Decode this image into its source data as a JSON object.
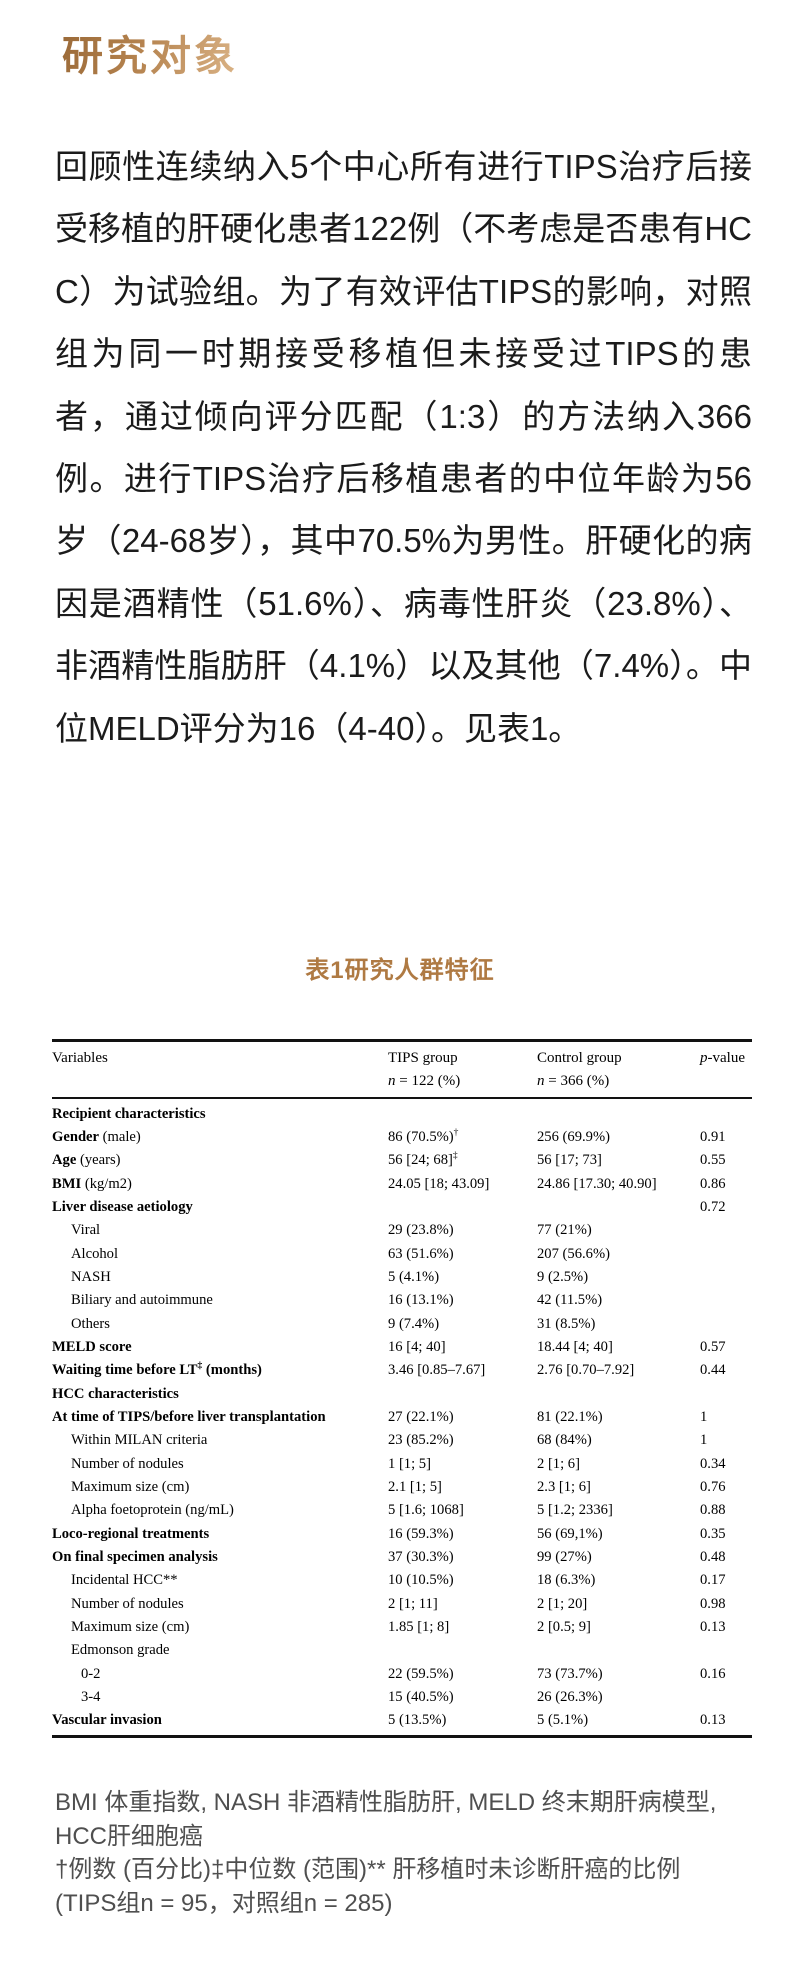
{
  "page": {
    "heading": "研究对象",
    "paragraph": "回顾性连续纳入5个中心所有进行TIPS治疗后接受移植的肝硬化患者122例（不考虑是否患有HCC）为试验组。为了有效评估TIPS的影响，对照组为同一时期接受移植但未接受过TIPS的患者，通过倾向评分匹配（1:3）的方法纳入366例。进行TIPS治疗后移植患者的中位年龄为56岁（24-68岁），其中70.5%为男性。肝硬化的病因是酒精性（51.6%）、病毒性肝炎（23.8%）、非酒精性脂肪肝（4.1%）以及其他（7.4%）。中位MELD评分为16（4-40）。见表1。",
    "table_title": "表1研究人群特征",
    "colors": {
      "heading_gold_dark": "#9a6937",
      "heading_gold_light": "#dbb487",
      "table_title_gold": "#af7a43",
      "body_text": "#1b1b1b",
      "footnote_text": "#4f4f4f"
    }
  },
  "table": {
    "headers": {
      "variables": "Variables",
      "tips_line1": "TIPS group",
      "tips_line2": "n = 122 (%)",
      "control_line1": "Control group",
      "control_line2": "n = 366 (%)",
      "p": "p-value"
    },
    "rows": [
      {
        "label": "Recipient characteristics",
        "bold": true,
        "indent": 0,
        "tips": "",
        "control": "",
        "p": ""
      },
      {
        "label": "Gender",
        "plain": " (male)",
        "bold": true,
        "indent": 0,
        "tips": "86 (70.5%)",
        "tips_sup": "†",
        "control": "256 (69.9%)",
        "p": "0.91"
      },
      {
        "label": "Age",
        "plain": " (years)",
        "bold": true,
        "indent": 0,
        "tips": "56 [24; 68]",
        "tips_sup": "‡",
        "control": "56 [17; 73]",
        "p": "0.55"
      },
      {
        "label": "BMI",
        "plain": " (kg/m2)",
        "bold": true,
        "indent": 0,
        "tips": "24.05 [18; 43.09]",
        "control": "24.86 [17.30; 40.90]",
        "p": "0.86"
      },
      {
        "label": "Liver disease aetiology",
        "bold": true,
        "indent": 0,
        "tips": "",
        "control": "",
        "p": "0.72"
      },
      {
        "label": "Viral",
        "indent": 1,
        "tips": "29 (23.8%)",
        "control": "77 (21%)",
        "p": ""
      },
      {
        "label": "Alcohol",
        "indent": 1,
        "tips": "63 (51.6%)",
        "control": "207 (56.6%)",
        "p": ""
      },
      {
        "label": "NASH",
        "indent": 1,
        "tips": "5 (4.1%)",
        "control": "9 (2.5%)",
        "p": ""
      },
      {
        "label": "Biliary and autoimmune",
        "indent": 1,
        "tips": "16 (13.1%)",
        "control": "42 (11.5%)",
        "p": ""
      },
      {
        "label": "Others",
        "indent": 1,
        "tips": "9 (7.4%)",
        "control": "31 (8.5%)",
        "p": ""
      },
      {
        "label": "MELD score",
        "bold": true,
        "indent": 0,
        "tips": "16 [4; 40]",
        "control": "18.44 [4; 40]",
        "p": "0.57"
      },
      {
        "label": "Waiting time before LT",
        "label_sup": "‡",
        "plain": " (months)",
        "plain_bold": true,
        "bold": true,
        "indent": 0,
        "tips": "3.46 [0.85–7.67]",
        "control": "2.76 [0.70–7.92]",
        "p": "0.44"
      },
      {
        "label": "HCC characteristics",
        "bold": true,
        "indent": 0,
        "tips": "",
        "control": "",
        "p": ""
      },
      {
        "label": "At time of TIPS/before liver transplantation",
        "bold": true,
        "indent": 0,
        "tips": "27 (22.1%)",
        "control": "81 (22.1%)",
        "p": "1"
      },
      {
        "label": "Within MILAN criteria",
        "indent": 1,
        "tips": "23 (85.2%)",
        "control": "68 (84%)",
        "p": "1"
      },
      {
        "label": "Number of nodules",
        "indent": 1,
        "tips": "1 [1; 5]",
        "control": "2 [1; 6]",
        "p": "0.34"
      },
      {
        "label": "Maximum size (cm)",
        "indent": 1,
        "tips": "2.1 [1; 5]",
        "control": "2.3 [1; 6]",
        "p": "0.76"
      },
      {
        "label": "Alpha foetoprotein (ng/mL)",
        "indent": 1,
        "tips": "5 [1.6; 1068]",
        "control": "5 [1.2; 2336]",
        "p": "0.88"
      },
      {
        "label": "Loco-regional treatments",
        "bold": true,
        "indent": 0,
        "tips": "16 (59.3%)",
        "control": "56 (69,1%)",
        "p": "0.35"
      },
      {
        "label": "On final specimen analysis",
        "bold": true,
        "indent": 0,
        "tips": "37 (30.3%)",
        "control": "99 (27%)",
        "p": "0.48"
      },
      {
        "label": "Incidental HCC**",
        "indent": 1,
        "tips": "10 (10.5%)",
        "control": "18 (6.3%)",
        "p": "0.17"
      },
      {
        "label": "Number of nodules",
        "indent": 1,
        "tips": "2 [1; 11]",
        "control": "2 [1; 20]",
        "p": "0.98"
      },
      {
        "label": "Maximum size (cm)",
        "indent": 1,
        "tips": "1.85 [1; 8]",
        "control": "2 [0.5; 9]",
        "p": "0.13"
      },
      {
        "label": "Edmonson grade",
        "indent": 1,
        "tips": "",
        "control": "",
        "p": ""
      },
      {
        "label": "0-2",
        "indent": 2,
        "tips": "22 (59.5%)",
        "control": "73 (73.7%)",
        "p": "0.16"
      },
      {
        "label": "3-4",
        "indent": 2,
        "tips": "15 (40.5%)",
        "control": "26 (26.3%)",
        "p": ""
      },
      {
        "label": "Vascular invasion",
        "bold": true,
        "indent": 0,
        "tips": "5 (13.5%)",
        "control": "5 (5.1%)",
        "p": "0.13"
      }
    ]
  },
  "footnotes": {
    "line1": "BMI 体重指数, NASH 非酒精性脂肪肝, MELD 终末期肝病模型,",
    "line2": "HCC肝细胞癌",
    "line3": "†例数 (百分比)‡中位数 (范围)** 肝移植时未诊断肝癌的比例",
    "line4": "(TIPS组n = 95，对照组n = 285)"
  }
}
